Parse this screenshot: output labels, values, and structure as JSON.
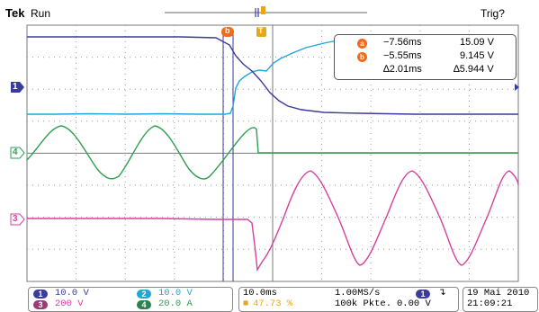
{
  "header": {
    "brand": "Tek",
    "status": "Run",
    "trigger_status": "Trig?"
  },
  "cursor_readout": {
    "a_label": "a",
    "a_time": "−7.56ms",
    "a_volt": "15.09 V",
    "b_label": "b",
    "b_time": "−5.55ms",
    "b_volt": "9.145 V",
    "delta_time": "∆2.01ms",
    "delta_volt": "∆5.944 V"
  },
  "channel_markers": {
    "ch1": "1",
    "ch4": "4",
    "ch3": "3"
  },
  "trigger_markers": {
    "t_label": "T",
    "cursor_a": "a",
    "cursor_b": "b"
  },
  "channels": [
    {
      "id": "1",
      "scale": "10.0 V",
      "color": "#3b3b9a"
    },
    {
      "id": "2",
      "scale": "10.0 V",
      "color": "#21a6d6"
    },
    {
      "id": "3",
      "scale": "200 V",
      "color": "#d6409e"
    },
    {
      "id": "4",
      "scale": "20.0 A",
      "color": "#2ea052"
    }
  ],
  "timebase": {
    "horizontal": "10.0ms",
    "sample_rate": "1.00MS/s",
    "trigger_pos": "47.73 %",
    "record": "100k Pkte."
  },
  "trigger": {
    "source": "1",
    "slope_icon": "falling-edge",
    "level": "0.00 V"
  },
  "datetime": {
    "date": "19 Mai  2010",
    "time": "21:09:21"
  },
  "colors": {
    "ch1": "#3b3b9a",
    "ch2": "#21a6d6",
    "ch3": "#d6409e",
    "ch4": "#2ea052",
    "cursor": "#f26a1b",
    "trigger": "#e6a817"
  }
}
